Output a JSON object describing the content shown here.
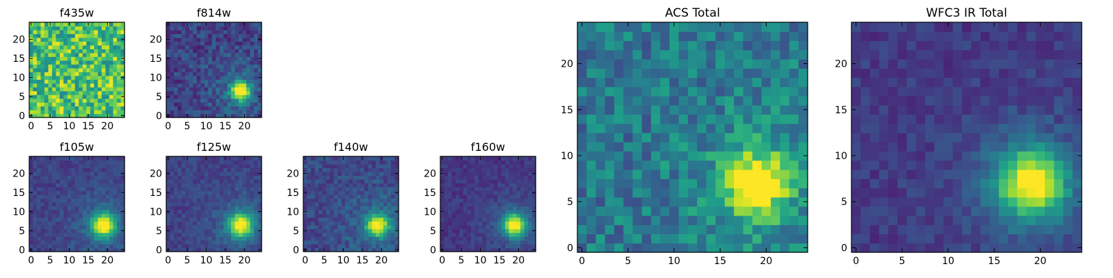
{
  "colormap": [
    "#440154",
    "#482878",
    "#3e4989",
    "#31688e",
    "#26828e",
    "#1f9e89",
    "#35b779",
    "#6ece58",
    "#b5de2b",
    "#fde725"
  ],
  "chart_data": [
    {
      "type": "heatmap",
      "title": "f435w",
      "grid_size": 25,
      "xticks": [
        "0",
        "5",
        "10",
        "15",
        "20"
      ],
      "yticks": [
        "0",
        "5",
        "10",
        "15",
        "20"
      ],
      "pattern": "noise",
      "peak": {
        "x": 19,
        "y": 6,
        "sigma": 2.5,
        "amp": 0.0
      },
      "background": 0.72,
      "noise": 0.26,
      "seed": 11
    },
    {
      "type": "heatmap",
      "title": "f814w",
      "grid_size": 25,
      "xticks": [
        "0",
        "5",
        "10",
        "15",
        "20"
      ],
      "yticks": [
        "0",
        "5",
        "10",
        "15",
        "20"
      ],
      "pattern": "source",
      "peak": {
        "x": 19,
        "y": 6.5,
        "sigma": 1.8,
        "amp": 0.8
      },
      "background": 0.2,
      "noise": 0.12,
      "seed": 23
    },
    {
      "type": "heatmap",
      "title": "f105w",
      "grid_size": 25,
      "xticks": [
        "0",
        "5",
        "10",
        "15",
        "20"
      ],
      "yticks": [
        "0",
        "5",
        "10",
        "15",
        "20"
      ],
      "pattern": "source",
      "peak": {
        "x": 19,
        "y": 6.5,
        "sigma": 2.2,
        "amp": 0.78
      },
      "background": 0.2,
      "noise": 0.07,
      "seed": 37
    },
    {
      "type": "heatmap",
      "title": "f125w",
      "grid_size": 25,
      "xticks": [
        "0",
        "5",
        "10",
        "15",
        "20"
      ],
      "yticks": [
        "0",
        "5",
        "10",
        "15",
        "20"
      ],
      "pattern": "source",
      "peak": {
        "x": 19,
        "y": 6.5,
        "sigma": 2.2,
        "amp": 0.78
      },
      "background": 0.2,
      "noise": 0.07,
      "seed": 41
    },
    {
      "type": "heatmap",
      "title": "f140w",
      "grid_size": 25,
      "xticks": [
        "0",
        "5",
        "10",
        "15",
        "20"
      ],
      "yticks": [
        "0",
        "5",
        "10",
        "15",
        "20"
      ],
      "pattern": "source",
      "peak": {
        "x": 19,
        "y": 6.5,
        "sigma": 2.0,
        "amp": 0.78
      },
      "background": 0.22,
      "noise": 0.09,
      "seed": 53
    },
    {
      "type": "heatmap",
      "title": "f160w",
      "grid_size": 25,
      "xticks": [
        "0",
        "5",
        "10",
        "15",
        "20"
      ],
      "yticks": [
        "0",
        "5",
        "10",
        "15",
        "20"
      ],
      "pattern": "source",
      "peak": {
        "x": 19,
        "y": 6.5,
        "sigma": 2.1,
        "amp": 0.8
      },
      "background": 0.16,
      "noise": 0.06,
      "seed": 67
    },
    {
      "type": "heatmap",
      "title": "ACS Total",
      "grid_size": 25,
      "xticks": [
        "0",
        "5",
        "10",
        "15",
        "20"
      ],
      "yticks": [
        "0",
        "5",
        "10",
        "15",
        "20"
      ],
      "pattern": "source",
      "peak": {
        "x": 19,
        "y": 7,
        "sigma": 2.4,
        "amp": 0.6
      },
      "background": 0.4,
      "noise": 0.16,
      "seed": 79
    },
    {
      "type": "heatmap",
      "title": "WFC3 IR Total",
      "grid_size": 25,
      "xticks": [
        "0",
        "5",
        "10",
        "15",
        "20"
      ],
      "yticks": [
        "0",
        "5",
        "10",
        "15",
        "20"
      ],
      "pattern": "source",
      "peak": {
        "x": 19,
        "y": 7,
        "sigma": 2.6,
        "amp": 0.78
      },
      "background": 0.17,
      "noise": 0.07,
      "seed": 97
    }
  ]
}
